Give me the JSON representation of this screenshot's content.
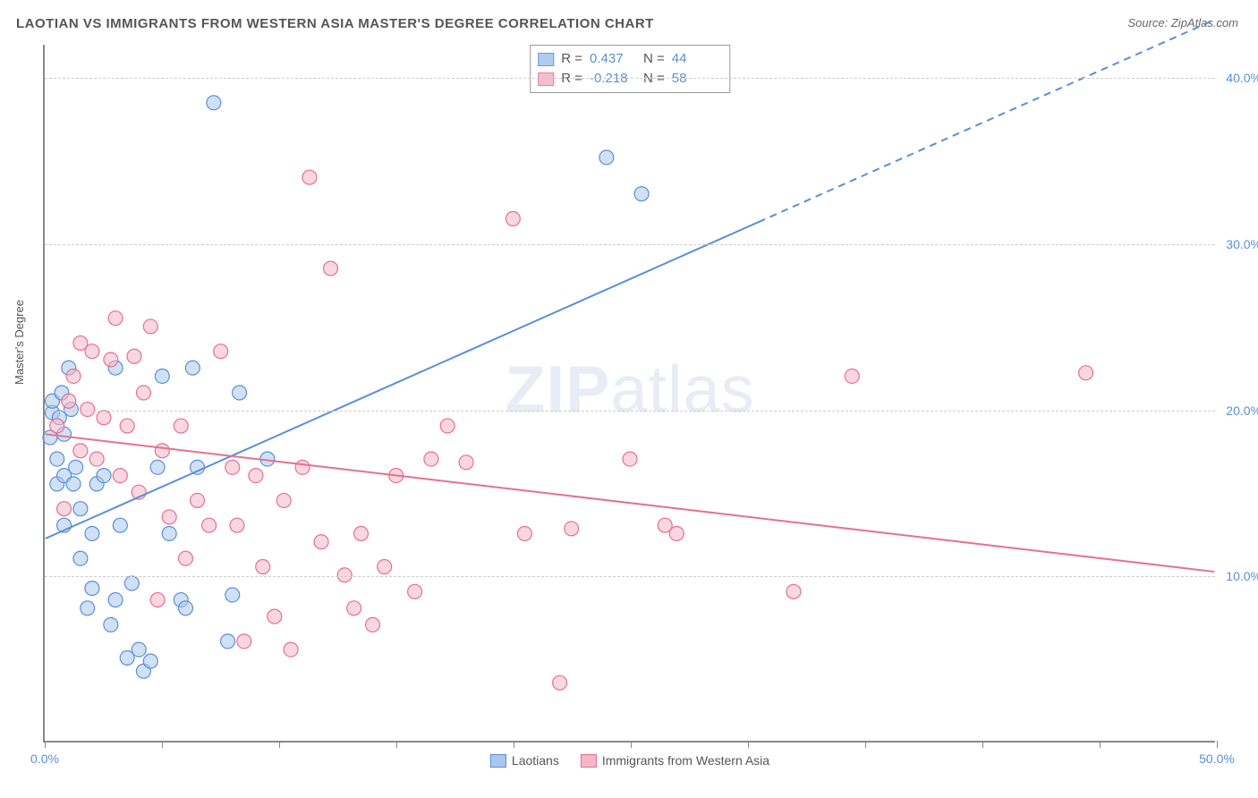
{
  "title": "LAOTIAN VS IMMIGRANTS FROM WESTERN ASIA MASTER'S DEGREE CORRELATION CHART",
  "source_prefix": "Source: ",
  "source_name": "ZipAtlas.com",
  "y_axis_label": "Master's Degree",
  "watermark_bold": "ZIP",
  "watermark_rest": "atlas",
  "chart": {
    "type": "scatter-with-regression",
    "xlim": [
      0,
      50
    ],
    "ylim": [
      0,
      42
    ],
    "x_ticks": [
      0,
      5,
      10,
      15,
      20,
      25,
      30,
      35,
      40,
      45,
      50
    ],
    "x_tick_labels": {
      "0": "0.0%",
      "50": "50.0%"
    },
    "y_gridlines": [
      10,
      20,
      30,
      40
    ],
    "y_tick_labels": {
      "10": "10.0%",
      "20": "20.0%",
      "30": "30.0%",
      "40": "40.0%"
    },
    "background_color": "#ffffff",
    "grid_color": "#cccccc",
    "marker_radius": 8,
    "marker_stroke_width": 1.2,
    "line_width": 2,
    "series": [
      {
        "name": "Laotians",
        "label": "Laotians",
        "fill": "#a9c6ec",
        "stroke": "#5a8fd6",
        "fill_opacity": 0.55,
        "R": "0.437",
        "N": "44",
        "regression": {
          "x1": 0,
          "y1": 12.2,
          "x2": 30.5,
          "y2": 31.3,
          "dash_x2": 50,
          "dash_y2": 43.5
        },
        "points": [
          [
            0.2,
            18.3
          ],
          [
            0.3,
            19.8
          ],
          [
            0.3,
            20.5
          ],
          [
            0.5,
            17.0
          ],
          [
            0.5,
            15.5
          ],
          [
            0.6,
            19.5
          ],
          [
            0.7,
            21.0
          ],
          [
            0.8,
            13.0
          ],
          [
            0.8,
            16.0
          ],
          [
            0.8,
            18.5
          ],
          [
            1.0,
            22.5
          ],
          [
            1.1,
            20.0
          ],
          [
            1.2,
            15.5
          ],
          [
            1.3,
            16.5
          ],
          [
            1.5,
            11.0
          ],
          [
            1.5,
            14.0
          ],
          [
            1.8,
            8.0
          ],
          [
            2.0,
            9.2
          ],
          [
            2.0,
            12.5
          ],
          [
            2.2,
            15.5
          ],
          [
            2.5,
            16.0
          ],
          [
            2.8,
            7.0
          ],
          [
            3.0,
            22.5
          ],
          [
            3.0,
            8.5
          ],
          [
            3.2,
            13.0
          ],
          [
            3.5,
            5.0
          ],
          [
            3.7,
            9.5
          ],
          [
            4.0,
            5.5
          ],
          [
            4.2,
            4.2
          ],
          [
            4.5,
            4.8
          ],
          [
            4.8,
            16.5
          ],
          [
            5.0,
            22.0
          ],
          [
            5.3,
            12.5
          ],
          [
            5.8,
            8.5
          ],
          [
            6.0,
            8.0
          ],
          [
            6.3,
            22.5
          ],
          [
            6.5,
            16.5
          ],
          [
            7.2,
            38.5
          ],
          [
            7.8,
            6.0
          ],
          [
            8.0,
            8.8
          ],
          [
            8.3,
            21.0
          ],
          [
            9.5,
            17.0
          ],
          [
            24.0,
            35.2
          ],
          [
            25.5,
            33.0
          ]
        ]
      },
      {
        "name": "Immigrants from Western Asia",
        "label": "Immigrants from Western Asia",
        "fill": "#f4b7c7",
        "stroke": "#e76f8f",
        "fill_opacity": 0.55,
        "R": "-0.218",
        "N": "58",
        "regression": {
          "x1": 0,
          "y1": 18.5,
          "x2": 50,
          "y2": 10.2
        },
        "points": [
          [
            0.5,
            19.0
          ],
          [
            0.8,
            14.0
          ],
          [
            1.0,
            20.5
          ],
          [
            1.2,
            22.0
          ],
          [
            1.5,
            17.5
          ],
          [
            1.5,
            24.0
          ],
          [
            1.8,
            20.0
          ],
          [
            2.0,
            23.5
          ],
          [
            2.2,
            17.0
          ],
          [
            2.5,
            19.5
          ],
          [
            2.8,
            23.0
          ],
          [
            3.0,
            25.5
          ],
          [
            3.2,
            16.0
          ],
          [
            3.5,
            19.0
          ],
          [
            3.8,
            23.2
          ],
          [
            4.0,
            15.0
          ],
          [
            4.2,
            21.0
          ],
          [
            4.5,
            25.0
          ],
          [
            4.8,
            8.5
          ],
          [
            5.0,
            17.5
          ],
          [
            5.3,
            13.5
          ],
          [
            5.8,
            19.0
          ],
          [
            6.0,
            11.0
          ],
          [
            6.5,
            14.5
          ],
          [
            7.0,
            13.0
          ],
          [
            7.5,
            23.5
          ],
          [
            8.0,
            16.5
          ],
          [
            8.2,
            13.0
          ],
          [
            8.5,
            6.0
          ],
          [
            9.0,
            16.0
          ],
          [
            9.3,
            10.5
          ],
          [
            9.8,
            7.5
          ],
          [
            10.2,
            14.5
          ],
          [
            10.5,
            5.5
          ],
          [
            11.0,
            16.5
          ],
          [
            11.3,
            34.0
          ],
          [
            11.8,
            12.0
          ],
          [
            12.2,
            28.5
          ],
          [
            12.8,
            10.0
          ],
          [
            13.2,
            8.0
          ],
          [
            13.5,
            12.5
          ],
          [
            14.0,
            7.0
          ],
          [
            14.5,
            10.5
          ],
          [
            15.0,
            16.0
          ],
          [
            15.8,
            9.0
          ],
          [
            16.5,
            17.0
          ],
          [
            17.2,
            19.0
          ],
          [
            18.0,
            16.8
          ],
          [
            20.0,
            31.5
          ],
          [
            20.5,
            12.5
          ],
          [
            22.0,
            3.5
          ],
          [
            22.5,
            12.8
          ],
          [
            25.0,
            17.0
          ],
          [
            26.5,
            13.0
          ],
          [
            32.0,
            9.0
          ],
          [
            34.5,
            22.0
          ],
          [
            44.5,
            22.2
          ],
          [
            27.0,
            12.5
          ]
        ]
      }
    ]
  },
  "stats_legend": {
    "R_label": "R",
    "N_label": "N",
    "equals": "="
  }
}
